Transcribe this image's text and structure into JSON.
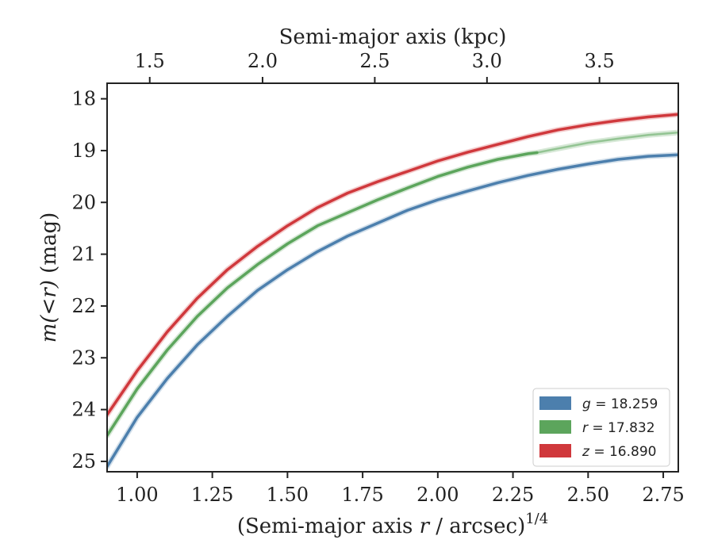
{
  "chart_data": {
    "type": "line",
    "xlabel_prefix": "(Semi-major axis ",
    "xlabel_var": "r",
    "xlabel_suffix": " / arcsec)",
    "xlabel_exp": "1/4",
    "ylabel_var": "m(<r)",
    "ylabel_suffix": " (mag)",
    "top_xlabel": "Semi-major axis (kpc)",
    "xlim": [
      0.9,
      2.8
    ],
    "ylim": [
      25.2,
      17.7
    ],
    "y_inverted": true,
    "x_ticks": [
      "1.00",
      "1.25",
      "1.50",
      "1.75",
      "2.00",
      "2.25",
      "2.50",
      "2.75"
    ],
    "x_tick_values": [
      1.0,
      1.25,
      1.5,
      1.75,
      2.0,
      2.25,
      2.5,
      2.75
    ],
    "y_ticks": [
      "18",
      "19",
      "20",
      "21",
      "22",
      "23",
      "24",
      "25"
    ],
    "y_tick_values": [
      18,
      19,
      20,
      21,
      22,
      23,
      24,
      25
    ],
    "top_ticks": [
      "1.5",
      "2.0",
      "2.5",
      "3.0",
      "3.5"
    ],
    "top_tick_positions": [
      1.0418,
      1.4171,
      1.7904,
      2.1636,
      2.5378
    ],
    "legend_position": "lower-right",
    "series": [
      {
        "name_var": "g",
        "name_value": " = 18.259",
        "color": "#4c7fad",
        "x": [
          0.9,
          1.0,
          1.1,
          1.2,
          1.3,
          1.4,
          1.5,
          1.6,
          1.7,
          1.8,
          1.9,
          2.0,
          2.1,
          2.2,
          2.3,
          2.4,
          2.5,
          2.6,
          2.7,
          2.8
        ],
        "y": [
          25.1,
          24.15,
          23.4,
          22.75,
          22.2,
          21.7,
          21.3,
          20.95,
          20.65,
          20.4,
          20.15,
          19.95,
          19.78,
          19.62,
          19.48,
          19.36,
          19.26,
          19.17,
          19.11,
          19.08
        ],
        "solid_until": 2.8
      },
      {
        "name_var": "r",
        "name_value": " = 17.832",
        "color": "#5ca55c",
        "x": [
          0.9,
          1.0,
          1.1,
          1.2,
          1.3,
          1.4,
          1.5,
          1.6,
          1.7,
          1.8,
          1.9,
          2.0,
          2.1,
          2.2,
          2.3,
          2.33,
          2.4,
          2.5,
          2.6,
          2.7,
          2.8
        ],
        "y": [
          24.5,
          23.6,
          22.85,
          22.2,
          21.65,
          21.2,
          20.8,
          20.45,
          20.2,
          19.95,
          19.72,
          19.5,
          19.32,
          19.17,
          19.06,
          19.04,
          18.96,
          18.85,
          18.77,
          18.7,
          18.65
        ],
        "solid_until": 2.33
      },
      {
        "name_var": "z",
        "name_value": " = 16.890",
        "color": "#d0383c",
        "x": [
          0.9,
          1.0,
          1.1,
          1.2,
          1.3,
          1.4,
          1.5,
          1.6,
          1.7,
          1.8,
          1.9,
          2.0,
          2.1,
          2.2,
          2.3,
          2.4,
          2.5,
          2.6,
          2.7,
          2.8
        ],
        "y": [
          24.1,
          23.25,
          22.5,
          21.85,
          21.3,
          20.85,
          20.45,
          20.1,
          19.82,
          19.6,
          19.4,
          19.2,
          19.03,
          18.88,
          18.73,
          18.6,
          18.5,
          18.42,
          18.35,
          18.3
        ],
        "solid_until": 2.8
      }
    ]
  }
}
